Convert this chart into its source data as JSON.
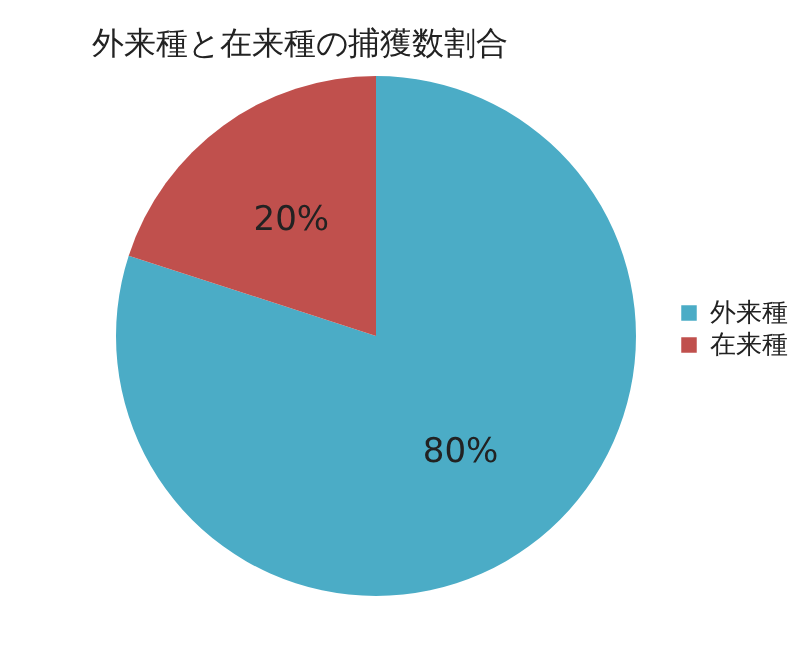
{
  "chart_data": {
    "type": "pie",
    "title": "外来種と在来種の捕獲数割合",
    "categories": [
      "外来種",
      "在来種"
    ],
    "values": [
      80,
      20
    ],
    "colors": [
      "#4bacc6",
      "#c0504d"
    ],
    "value_labels": [
      "80%",
      "20%"
    ],
    "legend": "right"
  }
}
